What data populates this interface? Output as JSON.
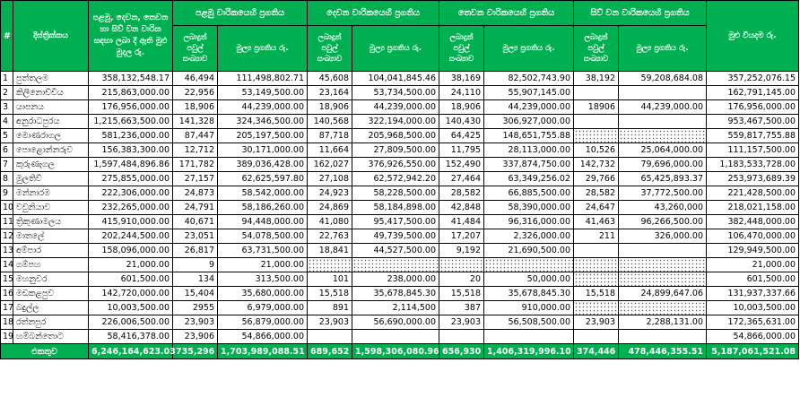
{
  "headers": {
    "num": "#",
    "district": "දිස්ත්‍රික්කය",
    "total_allocated": "පළමු, දෙවන, තෙවන හා සිව් වන වාරික සඳහා ලබා දී ඇති මුළු මුදල රු.",
    "phase1": "පළමු වාරිකයෙහි ප්‍රගතිය",
    "phase2": "දෙවන වාරිකයෙහි ප්‍රගතිය",
    "phase3": "තෙවන වාරිකයෙහි ප්‍රගතිය",
    "phase4": "සිව් වන වාරිකයෙහි ප්‍රගතිය",
    "total_spent": "මුළු වියදම රු.",
    "sub_count": "ලබාදුන් පවුල් සංඛ්‍යාව",
    "sub_amount": "මුල්‍ය ප්‍රගතිය රු."
  },
  "rows": [
    {
      "n": "1",
      "district": "පුත්තලම",
      "total": "358,132,548.17",
      "p1c": "46,494",
      "p1a": "111,498,802.71",
      "p2c": "45,608",
      "p2a": "104,041,845.46",
      "p3c": "38,169",
      "p3a": "82,502,743.90",
      "p4c": "38,192",
      "p4a": "59,208,684.08",
      "spent": "357,252,076.15"
    },
    {
      "n": "2",
      "district": "කිලිනොච්චිය",
      "total": "215,863,000.00",
      "p1c": "22,956",
      "p1a": "53,149,500.00",
      "p2c": "23,164",
      "p2a": "53,734,500.00",
      "p3c": "24,110",
      "p3a": "55,907,145.00",
      "p4c": "",
      "p4a": "",
      "spent": "162,791,145.00"
    },
    {
      "n": "3",
      "district": "යාපනය",
      "total": "176,956,000.00",
      "p1c": "18,906",
      "p1a": "44,239,000.00",
      "p2c": "18,906",
      "p2a": "44,239,000.00",
      "p3c": "18,906",
      "p3a": "44,239,000.00",
      "p4c": "18906",
      "p4a": "44,239,000.00",
      "spent": "176,956,000.00"
    },
    {
      "n": "4",
      "district": "අනුරාධපුරය",
      "total": "1,215,663,500.00",
      "p1c": "141,328",
      "p1a": "324,346,500.00",
      "p2c": "140,568",
      "p2a": "322,194,000.00",
      "p3c": "140,430",
      "p3a": "306,927,000.00",
      "p4c": "",
      "p4a": "",
      "spent": "953,467,500.00"
    },
    {
      "n": "5",
      "district": "මොණරාගල",
      "total": "581,236,000.00",
      "p1c": "87,447",
      "p1a": "205,197,500.00",
      "p2c": "87,718",
      "p2a": "205,968,500.00",
      "p3c": "64,425",
      "p3a": "148,651,755.88",
      "p4c": "",
      "p4a": "",
      "spent": "559,817,755.88",
      "p4dotted": true
    },
    {
      "n": "6",
      "district": "පොළොන්නරුව",
      "total": "156,383,300.00",
      "p1c": "12,712",
      "p1a": "30,171,000.00",
      "p2c": "11,664",
      "p2a": "27,809,500.00",
      "p3c": "11,795",
      "p3a": "28,113,000.00",
      "p4c": "10,526",
      "p4a": "25,064,000.00",
      "spent": "111,157,500.00"
    },
    {
      "n": "7",
      "district": "කුරුණෑගල",
      "total": "1,597,484,896.86",
      "p1c": "171,782",
      "p1a": "389,036,428.00",
      "p2c": "162,027",
      "p2a": "376,926,550.00",
      "p3c": "152,490",
      "p3a": "337,874,750.00",
      "p4c": "142,732",
      "p4a": "79,696,000.00",
      "spent": "1,183,533,728.00"
    },
    {
      "n": "8",
      "district": "මුලතිව්",
      "total": "275,855,000.00",
      "p1c": "27,157",
      "p1a": "62,625,597.80",
      "p2c": "27,108",
      "p2a": "62,572,942.20",
      "p3c": "27,464",
      "p3a": "63,349,256.02",
      "p4c": "29,766",
      "p4a": "65,425,893.37",
      "spent": "253,973,689.39"
    },
    {
      "n": "9",
      "district": "මන්නාරම",
      "total": "222,306,000.00",
      "p1c": "24,873",
      "p1a": "58,542,000.00",
      "p2c": "24,923",
      "p2a": "58,228,500.00",
      "p3c": "28,582",
      "p3a": "66,885,500.00",
      "p4c": "28,582",
      "p4a": "37,772,500.00",
      "spent": "221,428,500.00"
    },
    {
      "n": "10",
      "district": "වවුනියාව",
      "total": "232,265,000.00",
      "p1c": "24,791",
      "p1a": "58,186,260.00",
      "p2c": "24,869",
      "p2a": "58,184,898.00",
      "p3c": "42,848",
      "p3a": "58,390,000.00",
      "p4c": "24,647",
      "p4a": "43,260,000",
      "spent": "218,021,158.00"
    },
    {
      "n": "11",
      "district": "ත්‍රිකුණාමලය",
      "total": "415,910,000.00",
      "p1c": "40,671",
      "p1a": "94,448,000.00",
      "p2c": "41,080",
      "p2a": "95,417,500.00",
      "p3c": "41,484",
      "p3a": "96,316,000.00",
      "p4c": "41,463",
      "p4a": "96,266,500.00",
      "spent": "382,448,000.00"
    },
    {
      "n": "12",
      "district": "මාතලේ",
      "total": "202,244,500.00",
      "p1c": "23,051",
      "p1a": "54,078,500.00",
      "p2c": "22,763",
      "p2a": "49,739,500.00",
      "p3c": "17,207",
      "p3a": "2,326,000.00",
      "p4c": "211",
      "p4a": "326,000.00",
      "spent": "106,470,000.00"
    },
    {
      "n": "13",
      "district": "අම්පාර",
      "total": "158,096,000.00",
      "p1c": "26,817",
      "p1a": "63,731,500.00",
      "p2c": "18,841",
      "p2a": "44,527,500.00",
      "p3c": "9,192",
      "p3a": "21,690,500.00",
      "p4c": "",
      "p4a": "",
      "spent": "129,949,500.00"
    },
    {
      "n": "14",
      "district": "ගම්පහ",
      "total": "21,000.00",
      "p1c": "9",
      "p1a": "21,000.00",
      "p2c": "",
      "p2a": "",
      "p3c": "",
      "p3a": "",
      "p4c": "",
      "p4a": "",
      "spent": "21,000.00",
      "p2dotted": true,
      "p3dotted": true,
      "p4dotted": true
    },
    {
      "n": "15",
      "district": "මහනුවර",
      "total": "601,500.00",
      "p1c": "134",
      "p1a": "313,500.00",
      "p2c": "101",
      "p2a": "238,000.00",
      "p3c": "20",
      "p3a": "50,000.00",
      "p4c": "",
      "p4a": "",
      "spent": "601,500.00",
      "p4dotted": true
    },
    {
      "n": "16",
      "district": "මඩකළපුව",
      "total": "142,720,000.00",
      "p1c": "15,404",
      "p1a": "35,680,000.00",
      "p2c": "15,518",
      "p2a": "35,678,845.30",
      "p3c": "15,518",
      "p3a": "35,678,845.30",
      "p4c": "15,518",
      "p4a": "24,899,647.06",
      "spent": "131,937,337.66"
    },
    {
      "n": "17",
      "district": "බදුල්ල",
      "total": "10,003,500.00",
      "p1c": "2955",
      "p1a": "6,979,000.00",
      "p2c": "891",
      "p2a": "2,114,500",
      "p3c": "387",
      "p3a": "910,000.00",
      "p4c": "",
      "p4a": "",
      "spent": "10,003,500.00",
      "p4dotted": true
    },
    {
      "n": "18",
      "district": "රත්නපුර",
      "total": "226,006,500.00",
      "p1c": "23,903",
      "p1a": "56,879,000.00",
      "p2c": "23,903",
      "p2a": "56,690,000.00",
      "p3c": "23,903",
      "p3a": "56,508,500.00",
      "p4c": "23,903",
      "p4a": "2,288,131.00",
      "spent": "172,365,631.00"
    },
    {
      "n": "19",
      "district": "හම්බන්තොට",
      "total": "58,416,378.00",
      "p1c": "23,906",
      "p1a": "54,866,000.00",
      "p2c": "",
      "p2a": "",
      "p3c": "",
      "p3a": "",
      "p4c": "",
      "p4a": "",
      "spent": "54,866,000.00"
    }
  ],
  "total_row": {
    "label": "එකතුව",
    "total": "6,246,164,623.03",
    "p1c": "735,296",
    "p1a": "1,703,989,088.51",
    "p2c": "689,652",
    "p2a": "1,598,306,080.96",
    "p3c": "656,930",
    "p3a": "1,406,319,996.10",
    "p4c": "374,446",
    "p4a": "478,446,355.51",
    "spent": "5,187,061,521.08"
  }
}
